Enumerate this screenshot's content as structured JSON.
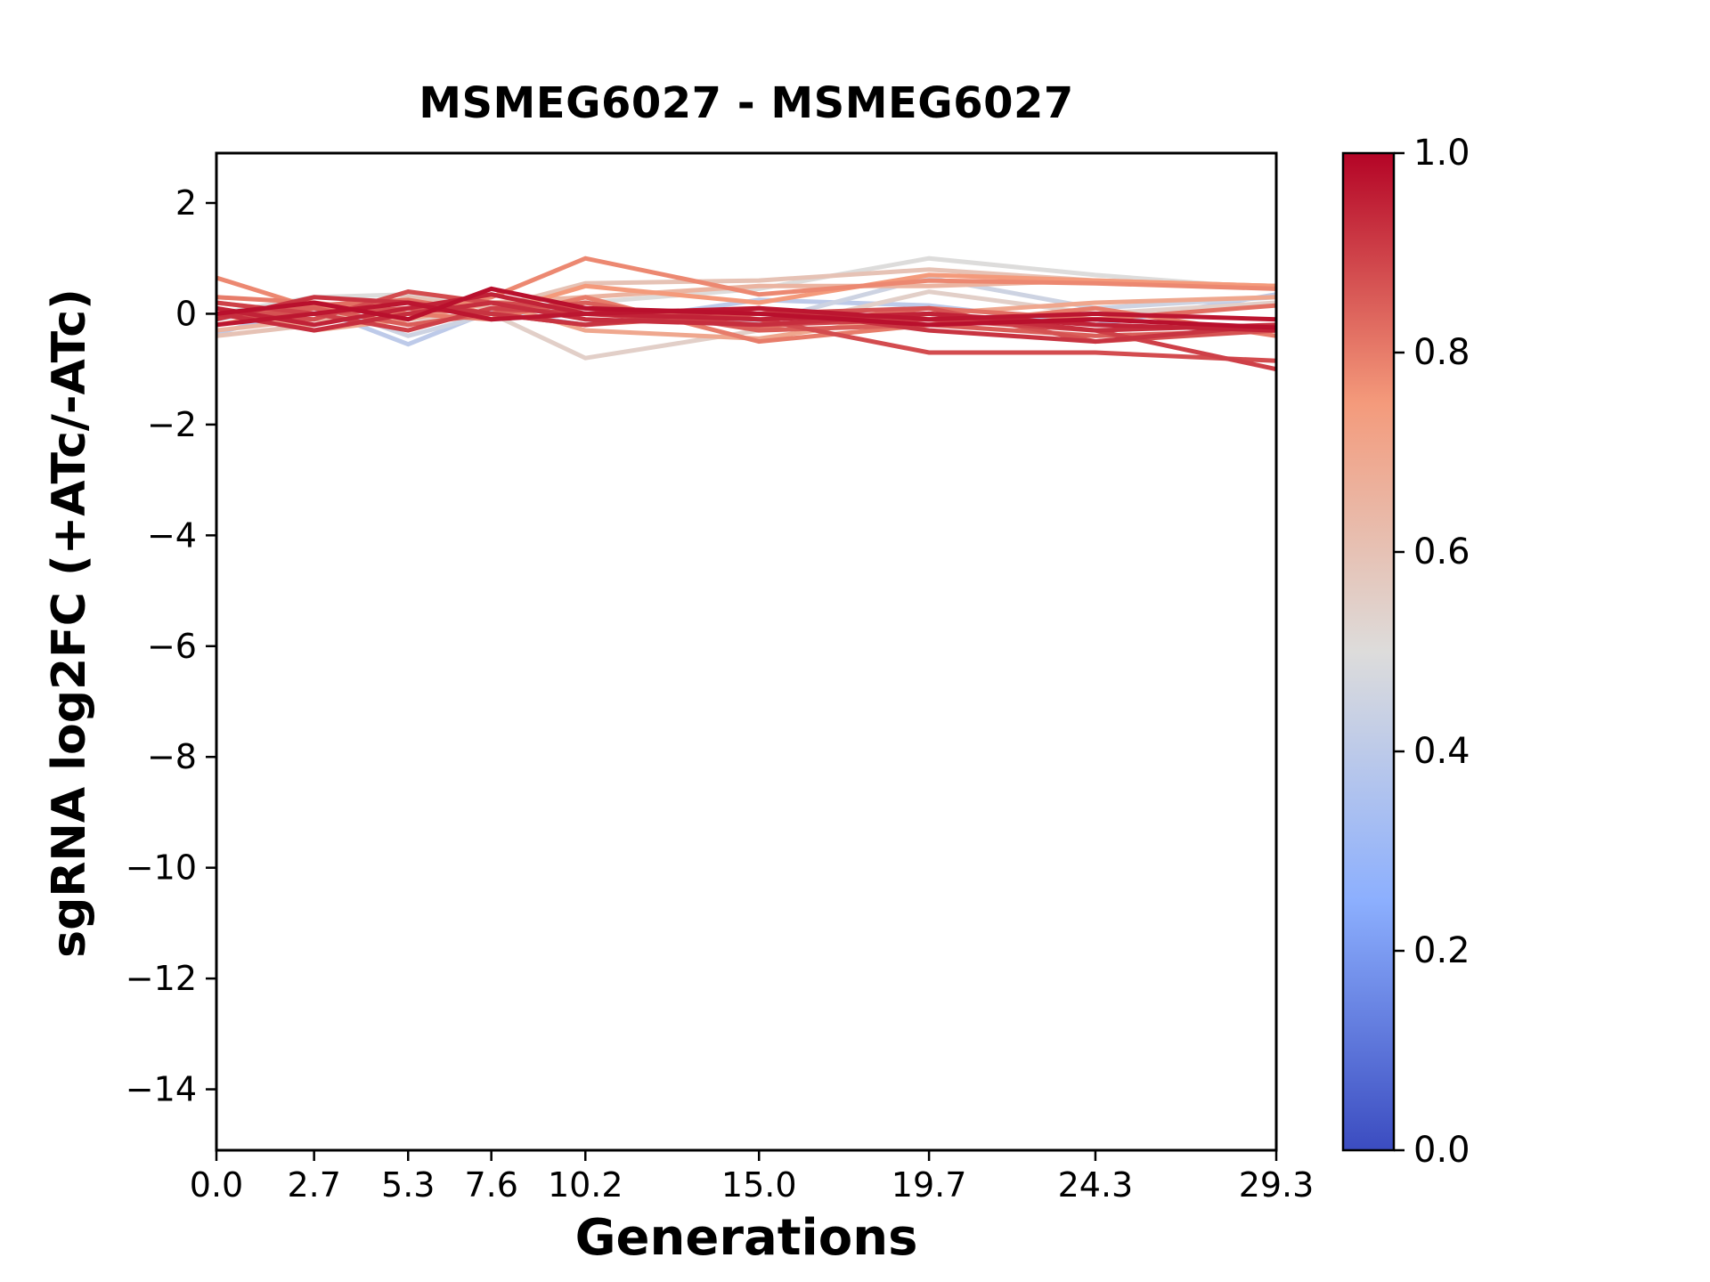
{
  "chart_data": {
    "type": "line",
    "title": "MSMEG6027 - MSMEG6027",
    "xlabel": "Generations",
    "ylabel": "sgRNA log2FC (+ATc/-ATc)",
    "x": [
      0.0,
      2.7,
      5.3,
      7.6,
      10.2,
      15.0,
      19.7,
      24.3,
      29.3
    ],
    "xticks": [
      {
        "value": 0.0,
        "label": "0.0"
      },
      {
        "value": 2.7,
        "label": "2.7"
      },
      {
        "value": 5.3,
        "label": "5.3"
      },
      {
        "value": 7.6,
        "label": "7.6"
      },
      {
        "value": 10.2,
        "label": "10.2"
      },
      {
        "value": 15.0,
        "label": "15.0"
      },
      {
        "value": 19.7,
        "label": "19.7"
      },
      {
        "value": 24.3,
        "label": "24.3"
      },
      {
        "value": 29.3,
        "label": "29.3"
      }
    ],
    "yticks": [
      {
        "value": 2,
        "label": "2"
      },
      {
        "value": 0,
        "label": "0"
      },
      {
        "value": -2,
        "label": "−2"
      },
      {
        "value": -4,
        "label": "−4"
      },
      {
        "value": -6,
        "label": "−6"
      },
      {
        "value": -8,
        "label": "−8"
      },
      {
        "value": -10,
        "label": "−10"
      },
      {
        "value": -12,
        "label": "−12"
      },
      {
        "value": -14,
        "label": "−14"
      }
    ],
    "xlim": [
      0.0,
      29.3
    ],
    "ylim": [
      -15.1,
      2.9
    ],
    "grid": false,
    "legend": "none",
    "colormap": "coolwarm",
    "colormap_stops": [
      {
        "pos": 0.0,
        "color": "#3b4cc0"
      },
      {
        "pos": 0.25,
        "color": "#8caffe"
      },
      {
        "pos": 0.5,
        "color": "#dddcdb"
      },
      {
        "pos": 0.75,
        "color": "#f49a7b"
      },
      {
        "pos": 1.0,
        "color": "#b40426"
      }
    ],
    "colorbar": {
      "min": 0.0,
      "max": 1.0,
      "ticks": [
        {
          "value": 0.0,
          "label": "0.0"
        },
        {
          "value": 0.2,
          "label": "0.2"
        },
        {
          "value": 0.4,
          "label": "0.4"
        },
        {
          "value": 0.6,
          "label": "0.6"
        },
        {
          "value": 0.8,
          "label": "0.8"
        },
        {
          "value": 1.0,
          "label": "1.0"
        }
      ]
    },
    "series": [
      {
        "color_value": 0.4,
        "values": [
          -0.35,
          0.1,
          -0.55,
          0.05,
          -0.2,
          0.25,
          0.15,
          -0.2,
          0.35
        ]
      },
      {
        "color_value": 0.45,
        "values": [
          -0.1,
          0.2,
          -0.4,
          0.0,
          0.1,
          -0.15,
          0.65,
          0.1,
          0.3
        ]
      },
      {
        "color_value": 0.5,
        "values": [
          0.0,
          0.3,
          0.35,
          0.1,
          0.2,
          0.45,
          1.0,
          0.7,
          0.45
        ]
      },
      {
        "color_value": 0.55,
        "values": [
          0.2,
          0.0,
          -0.1,
          0.0,
          -0.8,
          -0.3,
          0.4,
          0.0,
          0.2
        ]
      },
      {
        "color_value": 0.6,
        "values": [
          -0.4,
          -0.2,
          0.3,
          0.1,
          0.55,
          0.6,
          0.8,
          0.6,
          0.5
        ]
      },
      {
        "color_value": 0.65,
        "values": [
          -0.3,
          -0.1,
          0.0,
          0.2,
          0.3,
          0.5,
          0.5,
          0.6,
          0.5
        ]
      },
      {
        "color_value": 0.7,
        "values": [
          0.1,
          -0.3,
          -0.1,
          0.2,
          -0.3,
          -0.45,
          0.0,
          0.2,
          0.3
        ]
      },
      {
        "color_value": 0.75,
        "values": [
          -0.2,
          0.1,
          0.2,
          0.0,
          0.5,
          0.2,
          0.7,
          0.6,
          0.5
        ]
      },
      {
        "color_value": 0.78,
        "values": [
          0.65,
          0.1,
          0.0,
          0.3,
          1.0,
          0.35,
          0.6,
          0.55,
          0.45
        ]
      },
      {
        "color_value": 0.8,
        "values": [
          0.3,
          0.2,
          0.0,
          -0.1,
          0.3,
          -0.5,
          -0.2,
          0.1,
          -0.4
        ]
      },
      {
        "color_value": 0.82,
        "values": [
          -0.05,
          0.15,
          0.25,
          0.0,
          0.2,
          -0.25,
          0.1,
          -0.1,
          0.15
        ]
      },
      {
        "color_value": 0.85,
        "values": [
          0.0,
          0.1,
          -0.2,
          0.0,
          0.2,
          -0.3,
          -0.2,
          -0.4,
          -0.3
        ]
      },
      {
        "color_value": 0.87,
        "values": [
          0.0,
          0.0,
          0.1,
          0.0,
          -0.2,
          0.0,
          0.1,
          -0.5,
          -0.3
        ]
      },
      {
        "color_value": 0.88,
        "values": [
          0.0,
          -0.1,
          0.4,
          0.2,
          0.1,
          -0.1,
          -0.7,
          -0.7,
          -0.85
        ]
      },
      {
        "color_value": 0.9,
        "values": [
          0.2,
          0.0,
          -0.3,
          0.1,
          0.0,
          -0.2,
          -0.1,
          -0.3,
          -1.0
        ]
      },
      {
        "color_value": 0.92,
        "values": [
          -0.1,
          0.3,
          0.2,
          0.0,
          -0.2,
          0.1,
          -0.3,
          -0.5,
          -0.2
        ]
      },
      {
        "color_value": 0.93,
        "values": [
          0.0,
          -0.3,
          0.0,
          0.2,
          -0.1,
          -0.2,
          0.0,
          -0.3,
          -0.2
        ]
      },
      {
        "color_value": 0.95,
        "values": [
          0.1,
          -0.2,
          0.1,
          0.35,
          0.0,
          -0.1,
          0.0,
          -0.2,
          -0.3
        ]
      },
      {
        "color_value": 0.97,
        "values": [
          -0.2,
          0.0,
          0.2,
          -0.1,
          0.0,
          0.1,
          -0.1,
          0.0,
          -0.1
        ]
      },
      {
        "color_value": 0.98,
        "values": [
          0.0,
          0.2,
          -0.1,
          0.45,
          0.1,
          0.0,
          -0.2,
          -0.1,
          -0.25
        ]
      }
    ]
  }
}
